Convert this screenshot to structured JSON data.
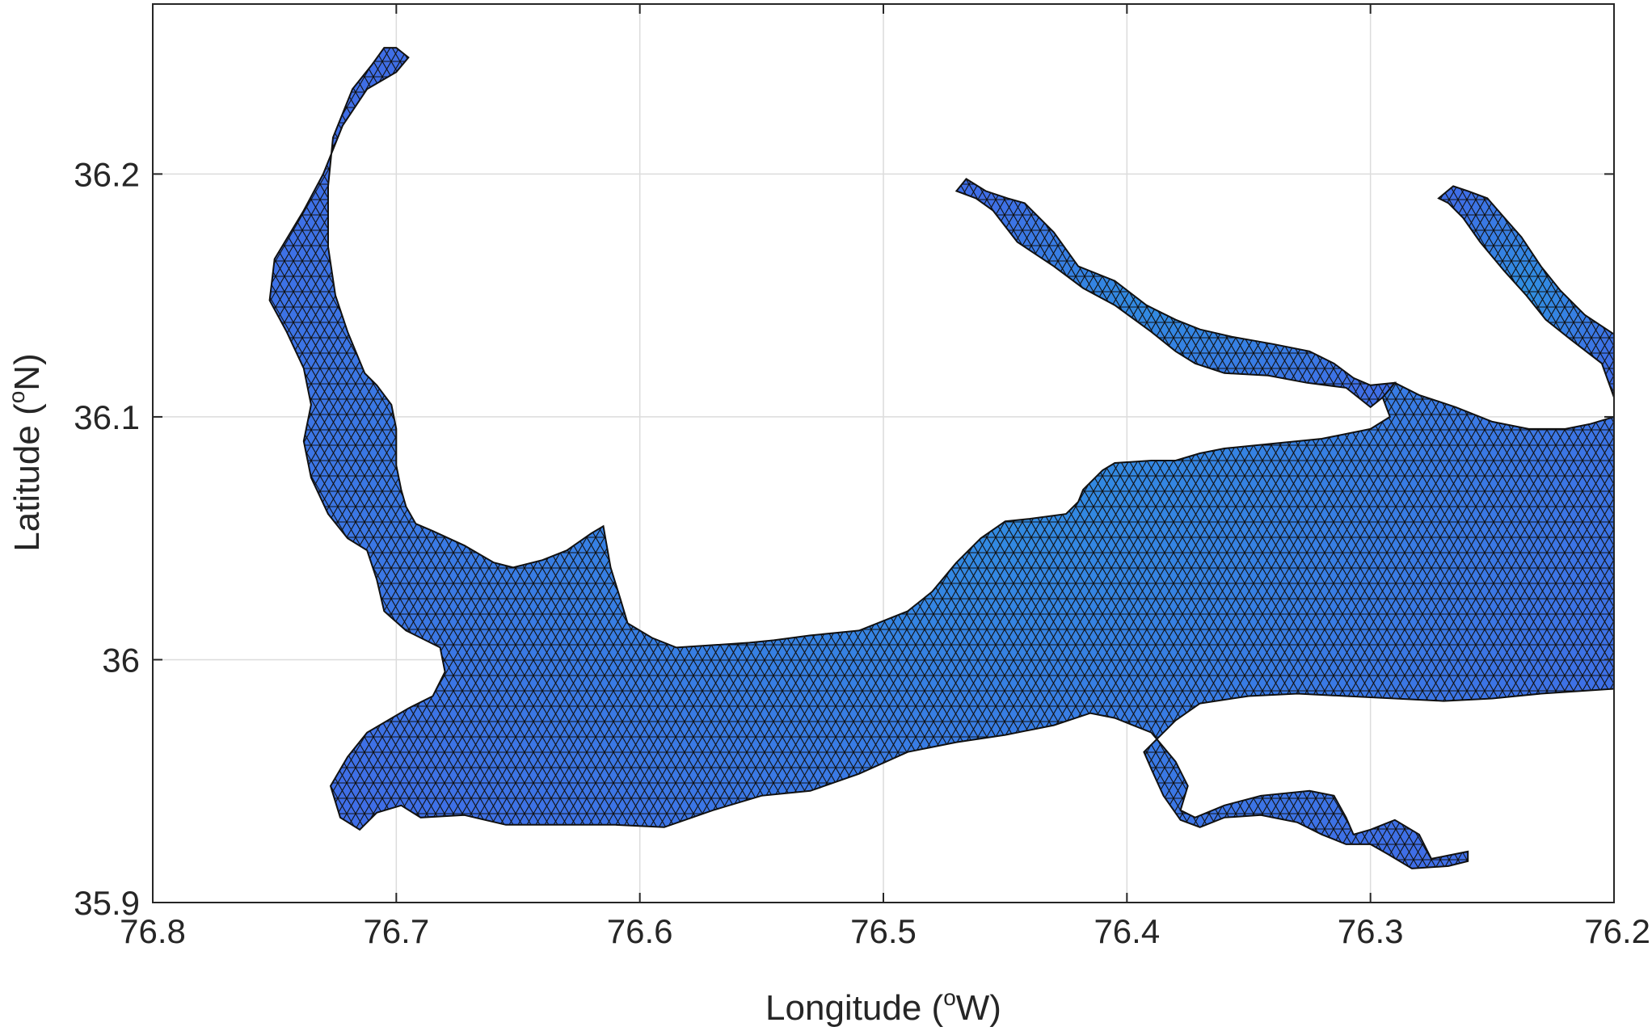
{
  "figure": {
    "x_axis": {
      "label": "Longitude (",
      "label_sup": "o",
      "label_end": "W)",
      "min": -76.8,
      "max": -76.2,
      "ticks": [
        {
          "value": -76.8,
          "label": "76.8"
        },
        {
          "value": -76.7,
          "label": "76.7"
        },
        {
          "value": -76.6,
          "label": "76.6"
        },
        {
          "value": -76.5,
          "label": "76.5"
        },
        {
          "value": -76.4,
          "label": "76.4"
        },
        {
          "value": -76.3,
          "label": "76.3"
        },
        {
          "value": -76.2,
          "label": "76.2"
        }
      ]
    },
    "y_axis": {
      "label": "Latitude (",
      "label_sup": "o",
      "label_end": "N)",
      "min": 35.9,
      "max": 36.27,
      "ticks": [
        {
          "value": 35.9,
          "label": "35.9"
        },
        {
          "value": 36.0,
          "label": "36"
        },
        {
          "value": 36.1,
          "label": "36.1"
        },
        {
          "value": 36.2,
          "label": "36.2"
        }
      ]
    },
    "grid": true,
    "colors": {
      "water_fill": "#3f6ee6",
      "water_fill_center": "#2f8fe0",
      "mesh_edge": "#111111",
      "frame": "#262626",
      "grid": "#dcdcdc"
    },
    "map_features": [
      {
        "name": "main-sound",
        "outline_lonlat": [
          [
            -76.672,
            35.936
          ],
          [
            -76.655,
            35.932
          ],
          [
            -76.635,
            35.932
          ],
          [
            -76.61,
            35.932
          ],
          [
            -76.59,
            35.931
          ],
          [
            -76.57,
            35.938
          ],
          [
            -76.55,
            35.944
          ],
          [
            -76.53,
            35.946
          ],
          [
            -76.51,
            35.953
          ],
          [
            -76.49,
            35.962
          ],
          [
            -76.47,
            35.966
          ],
          [
            -76.45,
            35.969
          ],
          [
            -76.43,
            35.973
          ],
          [
            -76.415,
            35.978
          ],
          [
            -76.405,
            35.976
          ],
          [
            -76.39,
            35.97
          ],
          [
            -76.38,
            35.958
          ],
          [
            -76.375,
            35.948
          ],
          [
            -76.378,
            35.938
          ],
          [
            -76.372,
            35.935
          ],
          [
            -76.36,
            35.94
          ],
          [
            -76.345,
            35.944
          ],
          [
            -76.325,
            35.946
          ],
          [
            -76.315,
            35.944
          ],
          [
            -76.31,
            35.935
          ],
          [
            -76.307,
            35.928
          ],
          [
            -76.3,
            35.93
          ],
          [
            -76.29,
            35.934
          ],
          [
            -76.28,
            35.928
          ],
          [
            -76.275,
            35.918
          ],
          [
            -76.265,
            35.92
          ],
          [
            -76.26,
            35.921
          ],
          [
            -76.26,
            35.917
          ],
          [
            -76.268,
            35.915
          ],
          [
            -76.283,
            35.914
          ],
          [
            -76.293,
            35.92
          ],
          [
            -76.3,
            35.924
          ],
          [
            -76.31,
            35.924
          ],
          [
            -76.32,
            35.928
          ],
          [
            -76.33,
            35.933
          ],
          [
            -76.345,
            35.936
          ],
          [
            -76.36,
            35.935
          ],
          [
            -76.37,
            35.931
          ],
          [
            -76.378,
            35.934
          ],
          [
            -76.385,
            35.944
          ],
          [
            -76.39,
            35.955
          ],
          [
            -76.393,
            35.962
          ],
          [
            -76.38,
            35.975
          ],
          [
            -76.37,
            35.982
          ],
          [
            -76.35,
            35.985
          ],
          [
            -76.33,
            35.986
          ],
          [
            -76.31,
            35.985
          ],
          [
            -76.29,
            35.984
          ],
          [
            -76.27,
            35.983
          ],
          [
            -76.25,
            35.984
          ],
          [
            -76.23,
            35.986
          ],
          [
            -76.2,
            35.988
          ],
          [
            -76.2,
            36.1
          ],
          [
            -76.21,
            36.097
          ],
          [
            -76.22,
            36.095
          ],
          [
            -76.235,
            36.095
          ],
          [
            -76.25,
            36.098
          ],
          [
            -76.265,
            36.104
          ],
          [
            -76.28,
            36.109
          ],
          [
            -76.29,
            36.114
          ],
          [
            -76.295,
            36.108
          ],
          [
            -76.292,
            36.1
          ],
          [
            -76.3,
            36.095
          ],
          [
            -76.32,
            36.091
          ],
          [
            -76.34,
            36.089
          ],
          [
            -76.36,
            36.087
          ],
          [
            -76.37,
            36.085
          ],
          [
            -76.38,
            36.082
          ],
          [
            -76.39,
            36.082
          ],
          [
            -76.405,
            36.081
          ],
          [
            -76.41,
            36.078
          ],
          [
            -76.418,
            36.07
          ],
          [
            -76.42,
            36.065
          ],
          [
            -76.425,
            36.06
          ],
          [
            -76.44,
            36.058
          ],
          [
            -76.45,
            36.057
          ],
          [
            -76.46,
            36.05
          ],
          [
            -76.47,
            36.04
          ],
          [
            -76.48,
            36.028
          ],
          [
            -76.49,
            36.02
          ],
          [
            -76.5,
            36.016
          ],
          [
            -76.51,
            36.012
          ],
          [
            -76.53,
            36.01
          ],
          [
            -76.545,
            36.008
          ],
          [
            -76.555,
            36.007
          ],
          [
            -76.57,
            36.006
          ],
          [
            -76.585,
            36.005
          ],
          [
            -76.595,
            36.009
          ],
          [
            -76.605,
            36.015
          ],
          [
            -76.608,
            36.025
          ],
          [
            -76.612,
            36.038
          ],
          [
            -76.615,
            36.055
          ],
          [
            -76.62,
            36.052
          ],
          [
            -76.63,
            36.045
          ],
          [
            -76.64,
            36.041
          ],
          [
            -76.652,
            36.038
          ],
          [
            -76.66,
            36.04
          ],
          [
            -76.672,
            36.047
          ],
          [
            -76.685,
            36.053
          ],
          [
            -76.692,
            36.056
          ],
          [
            -76.696,
            36.063
          ],
          [
            -76.698,
            36.07
          ],
          [
            -76.7,
            36.08
          ],
          [
            -76.7,
            36.095
          ],
          [
            -76.702,
            36.105
          ],
          [
            -76.708,
            36.113
          ],
          [
            -76.713,
            36.118
          ],
          [
            -76.72,
            36.135
          ],
          [
            -76.725,
            36.15
          ],
          [
            -76.728,
            36.17
          ],
          [
            -76.728,
            36.195
          ],
          [
            -76.726,
            36.215
          ],
          [
            -76.718,
            36.235
          ],
          [
            -76.71,
            36.245
          ],
          [
            -76.705,
            36.252
          ],
          [
            -76.7,
            36.252
          ],
          [
            -76.695,
            36.248
          ],
          [
            -76.7,
            36.242
          ],
          [
            -76.712,
            36.235
          ],
          [
            -76.722,
            36.22
          ],
          [
            -76.73,
            36.2
          ],
          [
            -76.738,
            36.185
          ],
          [
            -76.75,
            36.165
          ],
          [
            -76.752,
            36.148
          ],
          [
            -76.745,
            36.135
          ],
          [
            -76.738,
            36.12
          ],
          [
            -76.735,
            36.105
          ],
          [
            -76.738,
            36.09
          ],
          [
            -76.735,
            36.075
          ],
          [
            -76.728,
            36.06
          ],
          [
            -76.72,
            36.05
          ],
          [
            -76.712,
            36.045
          ],
          [
            -76.708,
            36.033
          ],
          [
            -76.705,
            36.02
          ],
          [
            -76.696,
            36.012
          ],
          [
            -76.682,
            36.005
          ],
          [
            -76.68,
            35.995
          ],
          [
            -76.685,
            35.985
          ],
          [
            -76.695,
            35.98
          ],
          [
            -76.712,
            35.97
          ],
          [
            -76.72,
            35.96
          ],
          [
            -76.727,
            35.948
          ],
          [
            -76.723,
            35.935
          ],
          [
            -76.715,
            35.93
          ],
          [
            -76.708,
            35.937
          ],
          [
            -76.698,
            35.94
          ],
          [
            -76.69,
            35.935
          ]
        ]
      },
      {
        "name": "northeast-tributary",
        "outline_lonlat": [
          [
            -76.466,
            36.198
          ],
          [
            -76.458,
            36.193
          ],
          [
            -76.449,
            36.19
          ],
          [
            -76.442,
            36.188
          ],
          [
            -76.43,
            36.176
          ],
          [
            -76.42,
            36.162
          ],
          [
            -76.405,
            36.156
          ],
          [
            -76.392,
            36.146
          ],
          [
            -76.38,
            36.14
          ],
          [
            -76.37,
            36.136
          ],
          [
            -76.357,
            36.133
          ],
          [
            -76.34,
            36.13
          ],
          [
            -76.325,
            36.127
          ],
          [
            -76.315,
            36.122
          ],
          [
            -76.307,
            36.116
          ],
          [
            -76.3,
            36.113
          ],
          [
            -76.29,
            36.114
          ],
          [
            -76.295,
            36.108
          ],
          [
            -76.3,
            36.104
          ],
          [
            -76.31,
            36.112
          ],
          [
            -76.326,
            36.114
          ],
          [
            -76.342,
            36.117
          ],
          [
            -76.36,
            36.118
          ],
          [
            -76.372,
            36.122
          ],
          [
            -76.38,
            36.127
          ],
          [
            -76.39,
            36.135
          ],
          [
            -76.405,
            36.146
          ],
          [
            -76.418,
            36.153
          ],
          [
            -76.43,
            36.162
          ],
          [
            -76.445,
            36.172
          ],
          [
            -76.455,
            36.185
          ],
          [
            -76.462,
            36.19
          ],
          [
            -76.47,
            36.193
          ]
        ]
      },
      {
        "name": "east-tributary",
        "outline_lonlat": [
          [
            -76.268,
            36.188
          ],
          [
            -76.262,
            36.182
          ],
          [
            -76.255,
            36.172
          ],
          [
            -76.245,
            36.16
          ],
          [
            -76.236,
            36.15
          ],
          [
            -76.228,
            36.14
          ],
          [
            -76.218,
            36.132
          ],
          [
            -76.205,
            36.122
          ],
          [
            -76.2,
            36.108
          ],
          [
            -76.2,
            36.134
          ],
          [
            -76.212,
            36.142
          ],
          [
            -76.222,
            36.152
          ],
          [
            -76.23,
            36.162
          ],
          [
            -76.238,
            36.174
          ],
          [
            -76.245,
            36.182
          ],
          [
            -76.252,
            36.19
          ],
          [
            -76.26,
            36.193
          ],
          [
            -76.266,
            36.195
          ],
          [
            -76.272,
            36.19
          ]
        ]
      }
    ]
  }
}
